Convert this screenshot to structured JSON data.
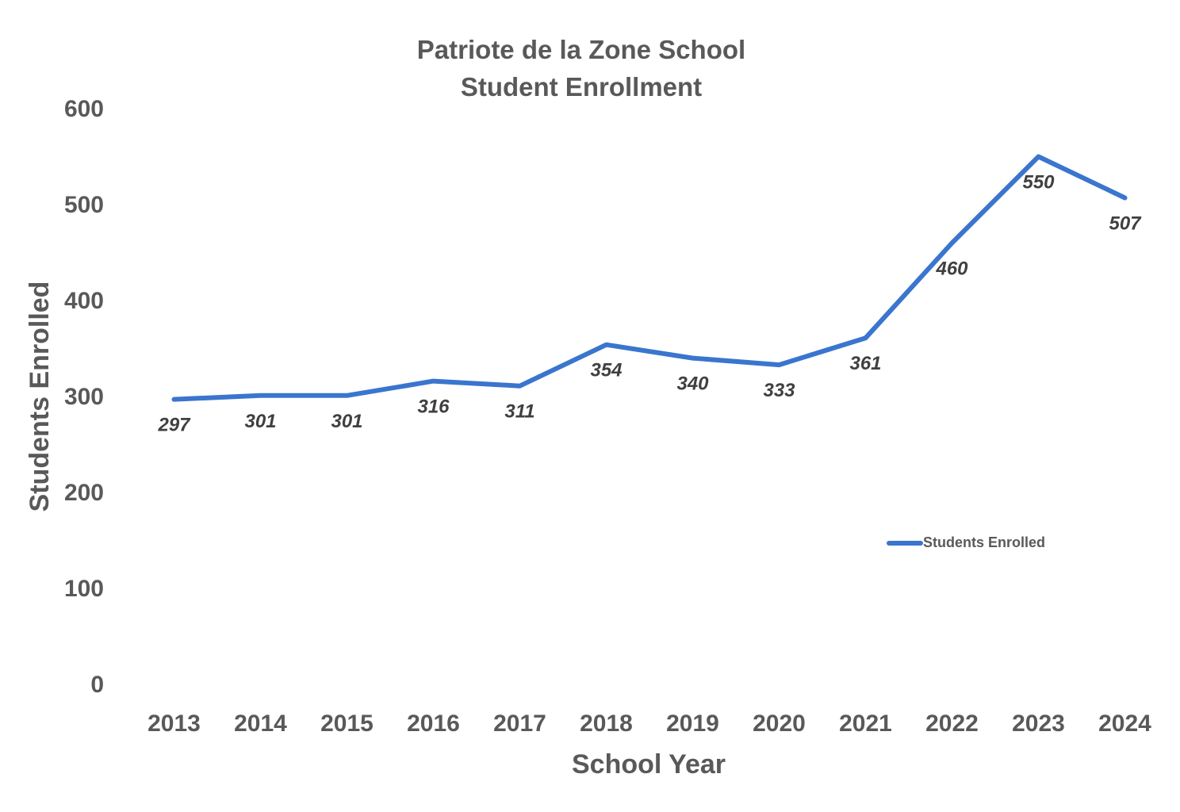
{
  "chart_data": {
    "type": "line",
    "title": "Patriote de la Zone School",
    "subtitle": "Student Enrollment",
    "xlabel": "School Year",
    "ylabel": "Students Enrolled",
    "ylim": [
      0,
      600
    ],
    "yticks": [
      0,
      100,
      200,
      300,
      400,
      500,
      600
    ],
    "grid": false,
    "legend": "inside-right",
    "categories": [
      "2013",
      "2014",
      "2015",
      "2016",
      "2017",
      "2018",
      "2019",
      "2020",
      "2021",
      "2022",
      "2023",
      "2024"
    ],
    "series": [
      {
        "name": "Students Enrolled",
        "color": "#3A75CE",
        "values": [
          297,
          301,
          301,
          316,
          311,
          354,
          340,
          333,
          361,
          460,
          550,
          507
        ]
      }
    ]
  }
}
